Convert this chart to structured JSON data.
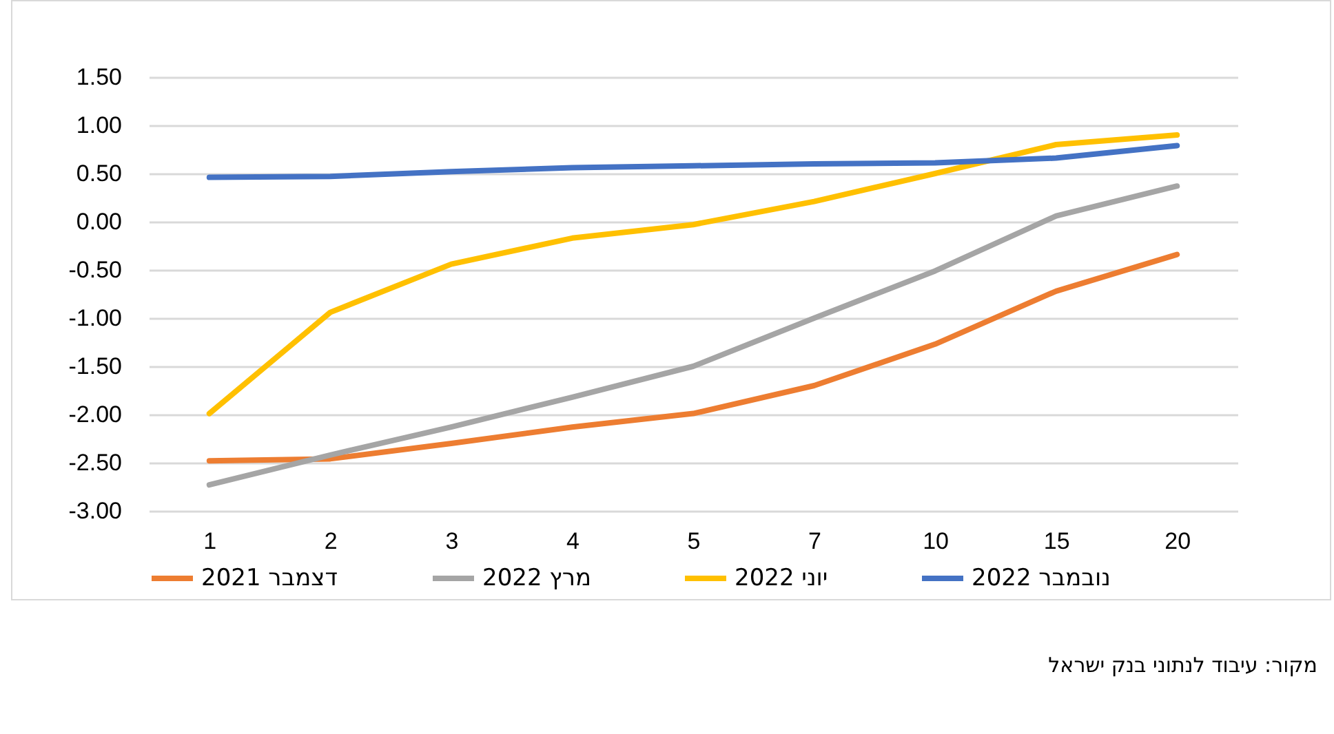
{
  "chart_data": {
    "type": "line",
    "categories": [
      "1",
      "2",
      "3",
      "4",
      "5",
      "7",
      "10",
      "15",
      "20"
    ],
    "series": [
      {
        "name": "דצמבר 2021",
        "color": "#ed7d31",
        "values": [
          -2.48,
          -2.46,
          -2.3,
          -2.13,
          -1.99,
          -1.7,
          -1.27,
          -0.72,
          -0.34
        ]
      },
      {
        "name": "מרץ 2022",
        "color": "#a5a5a5",
        "values": [
          -2.73,
          -2.42,
          -2.13,
          -1.82,
          -1.5,
          -1.0,
          -0.51,
          0.06,
          0.37
        ]
      },
      {
        "name": "יוני 2022",
        "color": "#ffc000",
        "values": [
          -1.99,
          -0.94,
          -0.44,
          -0.17,
          -0.03,
          0.21,
          0.5,
          0.8,
          0.9
        ]
      },
      {
        "name": "נובמבר 2022",
        "color": "#4472c4",
        "values": [
          0.46,
          0.47,
          0.52,
          0.56,
          0.58,
          0.6,
          0.61,
          0.66,
          0.79
        ]
      }
    ],
    "ylim": [
      -3,
      1.5
    ],
    "yticks": [
      {
        "value": -3,
        "label": "-3.00"
      },
      {
        "value": -2.5,
        "label": "-2.50"
      },
      {
        "value": -2,
        "label": "-2.00"
      },
      {
        "value": -1.5,
        "label": "-1.50"
      },
      {
        "value": -1,
        "label": "-1.00"
      },
      {
        "value": -0.5,
        "label": "-0.50"
      },
      {
        "value": 0,
        "label": "0.00"
      },
      {
        "value": 0.5,
        "label": "0.50"
      },
      {
        "value": 1,
        "label": "1.00"
      },
      {
        "value": 1.5,
        "label": "1.50"
      }
    ],
    "grid": "y",
    "legend": "bottom",
    "annotations": [
      "מקור: עיבוד לנתוני בנק ישראל"
    ]
  }
}
